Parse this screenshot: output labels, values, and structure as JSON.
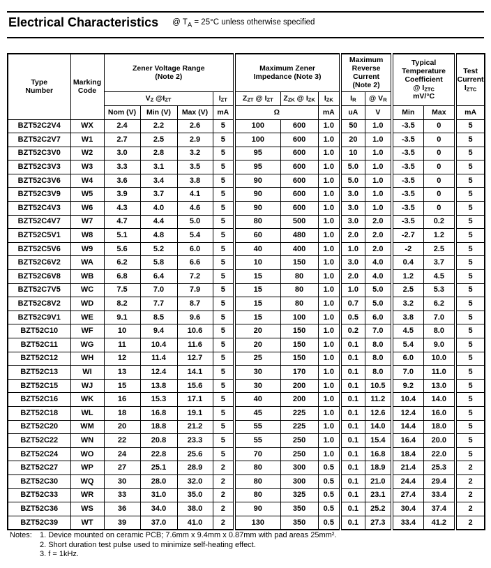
{
  "title": {
    "heading": "Electrical Characteristics",
    "condition": "@ T~A~ = 25°C unless otherwise specified"
  },
  "table": {
    "header": {
      "type_number": "Type|Number",
      "marking_code": "Marking|Code",
      "zener_voltage_range": "Zener Voltage Range|(Note 2)",
      "vz_at_izt": "V~Z~ @I~ZT~",
      "izt": "I~ZT~",
      "max_zener_impedance": "Maximum Zener|Impedance (Note 3)",
      "zzt_at_izt": "Z~ZT~ @ I~ZT~",
      "zzk_at_izk": "Z~ZK~ @ I~ZK~",
      "izk": "I~ZK~",
      "max_reverse_current": "Maximum|Reverse|Current|(Note 2)",
      "ir": "I~R~",
      "at_vr": "@ V~R~",
      "typ_temp_coefficient": "Typical|Temperature|Coefficient|@ I~ZTC~|mV/°C",
      "test_current": "Test|Current|I~ZTC~",
      "units": {
        "nom": "Nom (V)",
        "min": "Min (V)",
        "max": "Max (V)",
        "izt_ma": "mA",
        "ohm": "Ω",
        "izk_ma": "mA",
        "ir_ua": "uA",
        "vr_v": "V",
        "tc_min": "Min",
        "tc_max": "Max",
        "test_ma": "mA"
      }
    },
    "rows": [
      [
        "BZT52C2V4",
        "WX",
        "2.4",
        "2.2",
        "2.6",
        "5",
        "100",
        "600",
        "1.0",
        "50",
        "1.0",
        "-3.5",
        "0",
        "5"
      ],
      [
        "BZT52C2V7",
        "W1",
        "2.7",
        "2.5",
        "2.9",
        "5",
        "100",
        "600",
        "1.0",
        "20",
        "1.0",
        "-3.5",
        "0",
        "5"
      ],
      [
        "BZT52C3V0",
        "W2",
        "3.0",
        "2.8",
        "3.2",
        "5",
        "95",
        "600",
        "1.0",
        "10",
        "1.0",
        "-3.5",
        "0",
        "5"
      ],
      [
        "BZT52C3V3",
        "W3",
        "3.3",
        "3.1",
        "3.5",
        "5",
        "95",
        "600",
        "1.0",
        "5.0",
        "1.0",
        "-3.5",
        "0",
        "5"
      ],
      [
        "BZT52C3V6",
        "W4",
        "3.6",
        "3.4",
        "3.8",
        "5",
        "90",
        "600",
        "1.0",
        "5.0",
        "1.0",
        "-3.5",
        "0",
        "5"
      ],
      [
        "BZT52C3V9",
        "W5",
        "3.9",
        "3.7",
        "4.1",
        "5",
        "90",
        "600",
        "1.0",
        "3.0",
        "1.0",
        "-3.5",
        "0",
        "5"
      ],
      [
        "BZT52C4V3",
        "W6",
        "4.3",
        "4.0",
        "4.6",
        "5",
        "90",
        "600",
        "1.0",
        "3.0",
        "1.0",
        "-3.5",
        "0",
        "5"
      ],
      [
        "BZT52C4V7",
        "W7",
        "4.7",
        "4.4",
        "5.0",
        "5",
        "80",
        "500",
        "1.0",
        "3.0",
        "2.0",
        "-3.5",
        "0.2",
        "5"
      ],
      [
        "BZT52C5V1",
        "W8",
        "5.1",
        "4.8",
        "5.4",
        "5",
        "60",
        "480",
        "1.0",
        "2.0",
        "2.0",
        "-2.7",
        "1.2",
        "5"
      ],
      [
        "BZT52C5V6",
        "W9",
        "5.6",
        "5.2",
        "6.0",
        "5",
        "40",
        "400",
        "1.0",
        "1.0",
        "2.0",
        "-2",
        "2.5",
        "5"
      ],
      [
        "BZT52C6V2",
        "WA",
        "6.2",
        "5.8",
        "6.6",
        "5",
        "10",
        "150",
        "1.0",
        "3.0",
        "4.0",
        "0.4",
        "3.7",
        "5"
      ],
      [
        "BZT52C6V8",
        "WB",
        "6.8",
        "6.4",
        "7.2",
        "5",
        "15",
        "80",
        "1.0",
        "2.0",
        "4.0",
        "1.2",
        "4.5",
        "5"
      ],
      [
        "BZT52C7V5",
        "WC",
        "7.5",
        "7.0",
        "7.9",
        "5",
        "15",
        "80",
        "1.0",
        "1.0",
        "5.0",
        "2.5",
        "5.3",
        "5"
      ],
      [
        "BZT52C8V2",
        "WD",
        "8.2",
        "7.7",
        "8.7",
        "5",
        "15",
        "80",
        "1.0",
        "0.7",
        "5.0",
        "3.2",
        "6.2",
        "5"
      ],
      [
        "BZT52C9V1",
        "WE",
        "9.1",
        "8.5",
        "9.6",
        "5",
        "15",
        "100",
        "1.0",
        "0.5",
        "6.0",
        "3.8",
        "7.0",
        "5"
      ],
      [
        "BZT52C10",
        "WF",
        "10",
        "9.4",
        "10.6",
        "5",
        "20",
        "150",
        "1.0",
        "0.2",
        "7.0",
        "4.5",
        "8.0",
        "5"
      ],
      [
        "BZT52C11",
        "WG",
        "11",
        "10.4",
        "11.6",
        "5",
        "20",
        "150",
        "1.0",
        "0.1",
        "8.0",
        "5.4",
        "9.0",
        "5"
      ],
      [
        "BZT52C12",
        "WH",
        "12",
        "11.4",
        "12.7",
        "5",
        "25",
        "150",
        "1.0",
        "0.1",
        "8.0",
        "6.0",
        "10.0",
        "5"
      ],
      [
        "BZT52C13",
        "WI",
        "13",
        "12.4",
        "14.1",
        "5",
        "30",
        "170",
        "1.0",
        "0.1",
        "8.0",
        "7.0",
        "11.0",
        "5"
      ],
      [
        "BZT52C15",
        "WJ",
        "15",
        "13.8",
        "15.6",
        "5",
        "30",
        "200",
        "1.0",
        "0.1",
        "10.5",
        "9.2",
        "13.0",
        "5"
      ],
      [
        "BZT52C16",
        "WK",
        "16",
        "15.3",
        "17.1",
        "5",
        "40",
        "200",
        "1.0",
        "0.1",
        "11.2",
        "10.4",
        "14.0",
        "5"
      ],
      [
        "BZT52C18",
        "WL",
        "18",
        "16.8",
        "19.1",
        "5",
        "45",
        "225",
        "1.0",
        "0.1",
        "12.6",
        "12.4",
        "16.0",
        "5"
      ],
      [
        "BZT52C20",
        "WM",
        "20",
        "18.8",
        "21.2",
        "5",
        "55",
        "225",
        "1.0",
        "0.1",
        "14.0",
        "14.4",
        "18.0",
        "5"
      ],
      [
        "BZT52C22",
        "WN",
        "22",
        "20.8",
        "23.3",
        "5",
        "55",
        "250",
        "1.0",
        "0.1",
        "15.4",
        "16.4",
        "20.0",
        "5"
      ],
      [
        "BZT52C24",
        "WO",
        "24",
        "22.8",
        "25.6",
        "5",
        "70",
        "250",
        "1.0",
        "0.1",
        "16.8",
        "18.4",
        "22.0",
        "5"
      ],
      [
        "BZT52C27",
        "WP",
        "27",
        "25.1",
        "28.9",
        "2",
        "80",
        "300",
        "0.5",
        "0.1",
        "18.9",
        "21.4",
        "25.3",
        "2"
      ],
      [
        "BZT52C30",
        "WQ",
        "30",
        "28.0",
        "32.0",
        "2",
        "80",
        "300",
        "0.5",
        "0.1",
        "21.0",
        "24.4",
        "29.4",
        "2"
      ],
      [
        "BZT52C33",
        "WR",
        "33",
        "31.0",
        "35.0",
        "2",
        "80",
        "325",
        "0.5",
        "0.1",
        "23.1",
        "27.4",
        "33.4",
        "2"
      ],
      [
        "BZT52C36",
        "WS",
        "36",
        "34.0",
        "38.0",
        "2",
        "90",
        "350",
        "0.5",
        "0.1",
        "25.2",
        "30.4",
        "37.4",
        "2"
      ],
      [
        "BZT52C39",
        "WT",
        "39",
        "37.0",
        "41.0",
        "2",
        "130",
        "350",
        "0.5",
        "0.1",
        "27.3",
        "33.4",
        "41.2",
        "2"
      ]
    ]
  },
  "notes": {
    "label": "Notes:",
    "items": [
      "1. Device mounted on ceramic PCB; 7.6mm x 9.4mm x 0.87mm with pad areas 25mm².",
      "2. Short duration test pulse used to minimize self-heating effect.",
      "3. f = 1kHz."
    ]
  }
}
